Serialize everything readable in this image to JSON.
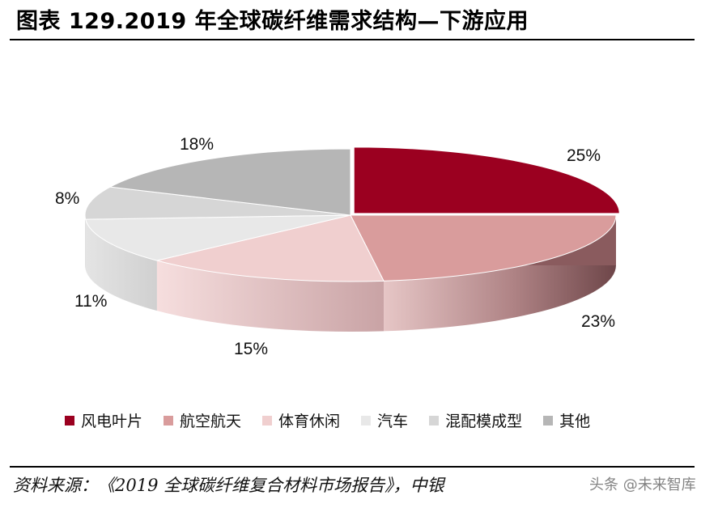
{
  "title": "图表 129.2019 年全球碳纤维需求结构—下游应用",
  "source": "资料来源：《2019 全球碳纤维复合材料市场报告》，中银",
  "watermark": "头条 @未来智库",
  "chart_data": {
    "type": "pie",
    "title": "图表 129.2019 年全球碳纤维需求结构—下游应用",
    "categories": [
      "风电叶片",
      "航空航天",
      "体育休闲",
      "汽车",
      "混配模成型",
      "其他"
    ],
    "values": [
      25,
      23,
      15,
      11,
      8,
      18
    ],
    "labels": [
      "25%",
      "23%",
      "15%",
      "11%",
      "8%",
      "18%"
    ],
    "colors": [
      "#9b0020",
      "#d99c9c",
      "#f0cfcf",
      "#e8e8e8",
      "#d6d6d6",
      "#b6b6b6"
    ],
    "legend": "bottom",
    "style": "3d-exploded"
  }
}
